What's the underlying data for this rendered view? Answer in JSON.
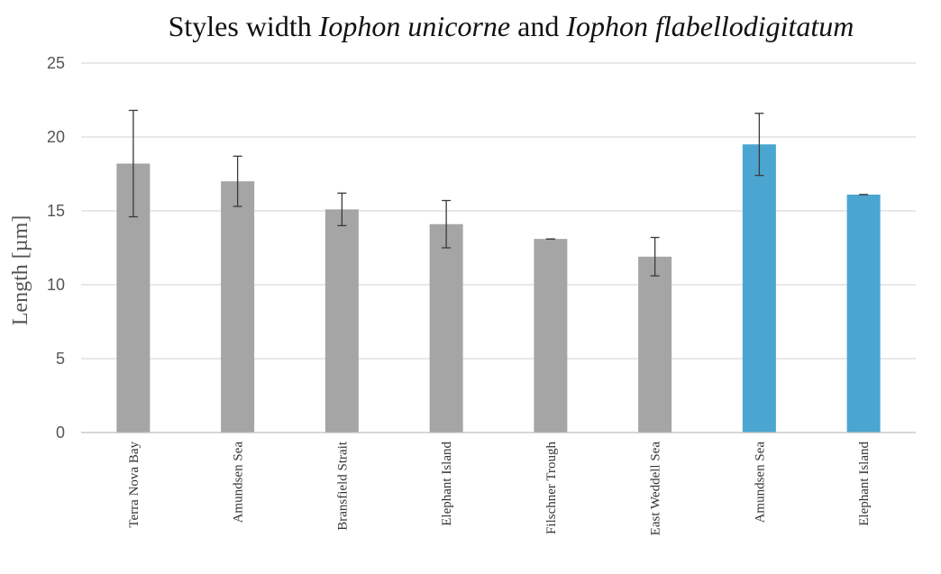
{
  "chart_data": {
    "type": "bar",
    "title": {
      "segments": [
        {
          "text": "Styles width ",
          "italic": false
        },
        {
          "text": "Iophon unicorne",
          "italic": true
        },
        {
          "text": " and ",
          "italic": false
        },
        {
          "text": "Iophon flabellodigitatum",
          "italic": true
        }
      ]
    },
    "xlabel": "",
    "ylabel": "Length [µm]",
    "ylim": [
      0,
      25
    ],
    "yticks": [
      "0",
      "5",
      "10",
      "15",
      "20",
      "25"
    ],
    "grid": true,
    "legend": "none",
    "colors": {
      "Iophon unicorne": "#a5a5a5",
      "Iophon flabellodigitatum": "#4aa6d1"
    },
    "categories": [
      "Terra Nova Bay",
      "Amundsen Sea",
      "Bransfield Strait",
      "Elephant Island",
      "Filschner Trough",
      "East Weddell Sea",
      "Amundsen Sea",
      "Elephant Island"
    ],
    "values": [
      18.2,
      17.0,
      15.1,
      14.1,
      13.1,
      11.9,
      19.5,
      16.1
    ],
    "error": [
      3.6,
      1.7,
      1.1,
      1.6,
      0.0,
      1.3,
      2.1,
      0.0
    ],
    "groups": [
      "Iophon unicorne",
      "Iophon unicorne",
      "Iophon unicorne",
      "Iophon unicorne",
      "Iophon unicorne",
      "Iophon unicorne",
      "Iophon flabellodigitatum",
      "Iophon flabellodigitatum"
    ]
  }
}
